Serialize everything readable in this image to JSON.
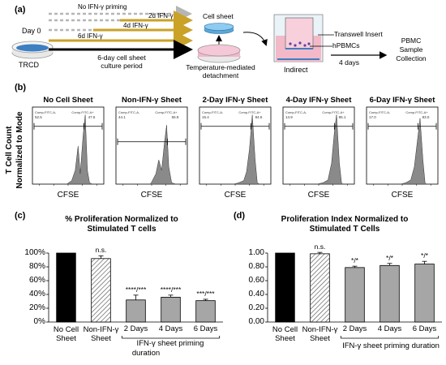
{
  "panel_a": {
    "letter": "(a)",
    "day0": "Day 0",
    "trcd": "TRCD",
    "no_priming": "No IFN-γ priming",
    "d2": "2d IFN-γ",
    "d4": "4d IFN-γ",
    "d6": "6d IFN-γ",
    "culture_line1": "6-day cell sheet",
    "culture_line2": "culture period",
    "cell_sheet": "Cell sheet",
    "temp_line1": "Temperature-mediated",
    "temp_line2": "detachment",
    "transwell": "Transwell Insert",
    "hpbmcs": "hPBMCs",
    "indirect": "Indirect",
    "four_days": "4 days",
    "pbmc_line1": "PBMC",
    "pbmc_line2": "Sample",
    "pbmc_line3": "Collection"
  },
  "panel_b": {
    "letter": "(b)",
    "ylabel_line1": "T Cell Count",
    "ylabel_line2": "Normalized to Mode",
    "xlabel": "CFSE",
    "gate_left": "Comp-FITC-A-",
    "gate_right": "Comp-FITC-A+",
    "histograms": [
      {
        "title": "No Cell Sheet",
        "left_pct": "52.5",
        "right_pct": "47.5"
      },
      {
        "title": "Non-IFN-γ Sheet",
        "left_pct": "44.1",
        "right_pct": "55.9"
      },
      {
        "title": "2-Day IFN-γ Sheet",
        "left_pct": "15.4",
        "right_pct": "84.6"
      },
      {
        "title": "4-Day IFN-γ Sheet",
        "left_pct": "14.9",
        "right_pct": "85.1"
      },
      {
        "title": "6-Day IFN-γ Sheet",
        "left_pct": "17.0",
        "right_pct": "83.0"
      }
    ]
  },
  "chart_data": [
    {
      "type": "bar",
      "panel": "(c)",
      "title_line1": "% Proliferation Normalized to",
      "title_line2": "Stimulated T cells",
      "categories": [
        "No Cell Sheet",
        "Non-IFN-γ Sheet",
        "2 Days",
        "4 Days",
        "6 Days"
      ],
      "values": [
        100,
        92,
        32,
        36,
        31
      ],
      "errors": [
        0,
        4,
        7,
        3,
        2
      ],
      "annotations": [
        "",
        "n.s.",
        "****/***",
        "****/***",
        "***/***"
      ],
      "ylim": [
        0,
        100
      ],
      "yticks": [
        "0%",
        "20%",
        "40%",
        "60%",
        "80%",
        "100%"
      ],
      "xgroup_line1": "IFN-γ sheet priming",
      "xgroup_line2": "duration",
      "colors": {
        "black": "#000000",
        "gray": "#a6a6a6"
      }
    },
    {
      "type": "bar",
      "panel": "(d)",
      "title_line1": "Proliferation Index Normalized to",
      "title_line2": "Stimulated T Cells",
      "categories": [
        "No Cell Sheet",
        "Non-IFN-γ Sheet",
        "2 Days",
        "4 Days",
        "6 Days"
      ],
      "values": [
        1.0,
        0.99,
        0.79,
        0.82,
        0.84
      ],
      "errors": [
        0,
        0.02,
        0.02,
        0.03,
        0.04
      ],
      "annotations": [
        "",
        "n.s.",
        "*/*",
        "*/*",
        "*/*"
      ],
      "ylim": [
        0,
        1.0
      ],
      "yticks": [
        "0.00",
        "0.20",
        "0.40",
        "0.60",
        "0.80",
        "1.00"
      ],
      "xgroup_line1": "IFN-γ sheet priming duration",
      "xgroup_line2": "",
      "colors": {
        "black": "#000000",
        "gray": "#a6a6a6"
      }
    }
  ]
}
